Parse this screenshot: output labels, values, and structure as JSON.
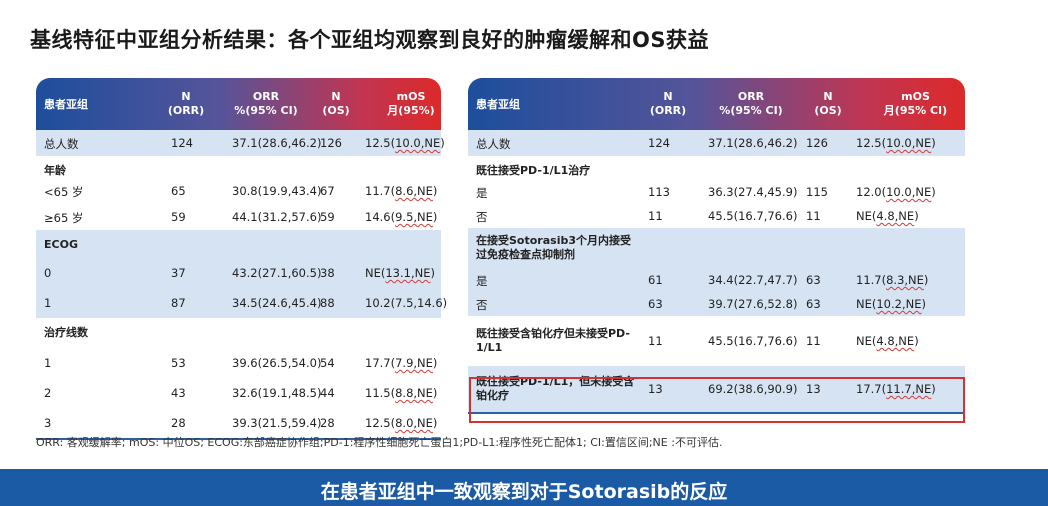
{
  "title": "基线特征中亚组分析结果：各个亚组均观察到良好的肿瘤缓解和OS获益",
  "left_table": {
    "headers": [
      "患者亚组",
      "N\n(ORR)",
      "ORR\n%(95% CI)",
      "N\n(OS)",
      "mOS\n月(95%)"
    ],
    "rows": [
      {
        "label": "总人数",
        "n_orr": "124",
        "orr": "37.1(28.6,46.2)",
        "n_os": "126",
        "mos_a": "12.5(",
        "mos_b": "10.0,NE",
        "mos_c": ")",
        "shaded": true
      },
      {
        "label": "年龄",
        "n_orr": "",
        "orr": "",
        "n_os": "",
        "mos_a": "",
        "mos_b": "",
        "mos_c": "",
        "shaded": false,
        "section": true
      },
      {
        "label": "<65 岁",
        "n_orr": "65",
        "orr": "30.8(19.9,43.4)",
        "n_os": "67",
        "mos_a": "11.7(",
        "mos_b": "8.6,NE",
        "mos_c": ")",
        "shaded": false
      },
      {
        "label": "≥65 岁",
        "n_orr": "59",
        "orr": "44.1(31.2,57.6)",
        "n_os": "59",
        "mos_a": "14.6(",
        "mos_b": "9.5,NE",
        "mos_c": ")",
        "shaded": false
      },
      {
        "label": "ECOG",
        "n_orr": "",
        "orr": "",
        "n_os": "",
        "mos_a": "",
        "mos_b": "",
        "mos_c": "",
        "shaded": true,
        "section": true
      },
      {
        "label": "0",
        "n_orr": "37",
        "orr": "43.2(27.1,60.5)",
        "n_os": "38",
        "mos_a": "NE(",
        "mos_b": "13.1,NE",
        "mos_c": ")",
        "shaded": true
      },
      {
        "label": "1",
        "n_orr": "87",
        "orr": "34.5(24.6,45.4)",
        "n_os": "88",
        "mos_a": "10.2(7.5,14.6)",
        "mos_b": "",
        "mos_c": "",
        "shaded": true
      },
      {
        "label": "治疗线数",
        "n_orr": "",
        "orr": "",
        "n_os": "",
        "mos_a": "",
        "mos_b": "",
        "mos_c": "",
        "shaded": false,
        "section": true
      },
      {
        "label": "1",
        "n_orr": "53",
        "orr": "39.6(26.5,54.0)",
        "n_os": "54",
        "mos_a": "17.7(",
        "mos_b": "7.9,NE",
        "mos_c": ")",
        "shaded": false
      },
      {
        "label": "2",
        "n_orr": "43",
        "orr": "32.6(19.1,48.5)",
        "n_os": "44",
        "mos_a": "11.5(",
        "mos_b": "8.8,NE",
        "mos_c": ")",
        "shaded": false
      },
      {
        "label": "3",
        "n_orr": "28",
        "orr": "39.3(21.5,59.4)",
        "n_os": "28",
        "mos_a": "12.5(",
        "mos_b": "8.0,NE",
        "mos_c": ")",
        "shaded": false
      }
    ]
  },
  "right_table": {
    "headers": [
      "患者亚组",
      "N\n(ORR)",
      "ORR\n%(95% CI)",
      "N\n(OS)",
      "mOS\n月(95% CI)"
    ],
    "rows": [
      {
        "label": "总人数",
        "n_orr": "124",
        "orr": "37.1(28.6,46.2)",
        "n_os": "126",
        "mos_a": "12.5(",
        "mos_b": "10.0,NE",
        "mos_c": ")",
        "shaded": true
      },
      {
        "label": "既往接受PD-1/L1治疗",
        "n_orr": "",
        "orr": "",
        "n_os": "",
        "mos_a": "",
        "mos_b": "",
        "mos_c": "",
        "shaded": false,
        "section": true
      },
      {
        "label": "是",
        "n_orr": "113",
        "orr": "36.3(27.4,45.9)",
        "n_os": "115",
        "mos_a": "12.0(",
        "mos_b": "10.0,NE",
        "mos_c": ")",
        "shaded": false
      },
      {
        "label": "否",
        "n_orr": "11",
        "orr": "45.5(16.7,76.6)",
        "n_os": "11",
        "mos_a": "NE(",
        "mos_b": "4.8,NE",
        "mos_c": ")",
        "shaded": false
      },
      {
        "label": "在接受Sotorasib3个月内接受过免疫检查点抑制剂",
        "n_orr": "",
        "orr": "",
        "n_os": "",
        "mos_a": "",
        "mos_b": "",
        "mos_c": "",
        "shaded": true,
        "section": true
      },
      {
        "label": "是",
        "n_orr": "61",
        "orr": "34.4(22.7,47.7)",
        "n_os": "63",
        "mos_a": "11.7(",
        "mos_b": "8.3,NE",
        "mos_c": ")",
        "shaded": true
      },
      {
        "label": "否",
        "n_orr": "63",
        "orr": "39.7(27.6,52.8)",
        "n_os": "63",
        "mos_a": "NE(",
        "mos_b": "10.2,NE",
        "mos_c": ")",
        "shaded": true
      },
      {
        "label": "既往接受含铂化疗但未接受PD-1/L1",
        "n_orr": "11",
        "orr": "45.5(16.7,76.6)",
        "n_os": "11",
        "mos_a": "NE(",
        "mos_b": "4.8,NE",
        "mos_c": ")",
        "shaded": false,
        "bold": true
      },
      {
        "label": "既往接受PD-1/L1，但未接受含铂化疗",
        "n_orr": "13",
        "orr": "69.2(38.6,90.9)",
        "n_os": "13",
        "mos_a": "17.7(",
        "mos_b": "11.7,NE",
        "mos_c": ")",
        "shaded": true,
        "bold": true
      }
    ]
  },
  "footnote": "ORR: 客观缓解率; mOS: 中位OS; ECOG:东部癌症协作组;PD-1:程序性细胞死亡蛋白1;PD-L1:程序性死亡配体1; CI:置信区间;NE :不可评估.",
  "banner": "在患者亚组中一致观察到对于Sotorasib的反应",
  "colors": {
    "header_start": "#1d4e9c",
    "header_end": "#dc2a2a",
    "shade": "#d6e3f2",
    "banner": "#1b5aa5",
    "highlight": "#d63131"
  }
}
